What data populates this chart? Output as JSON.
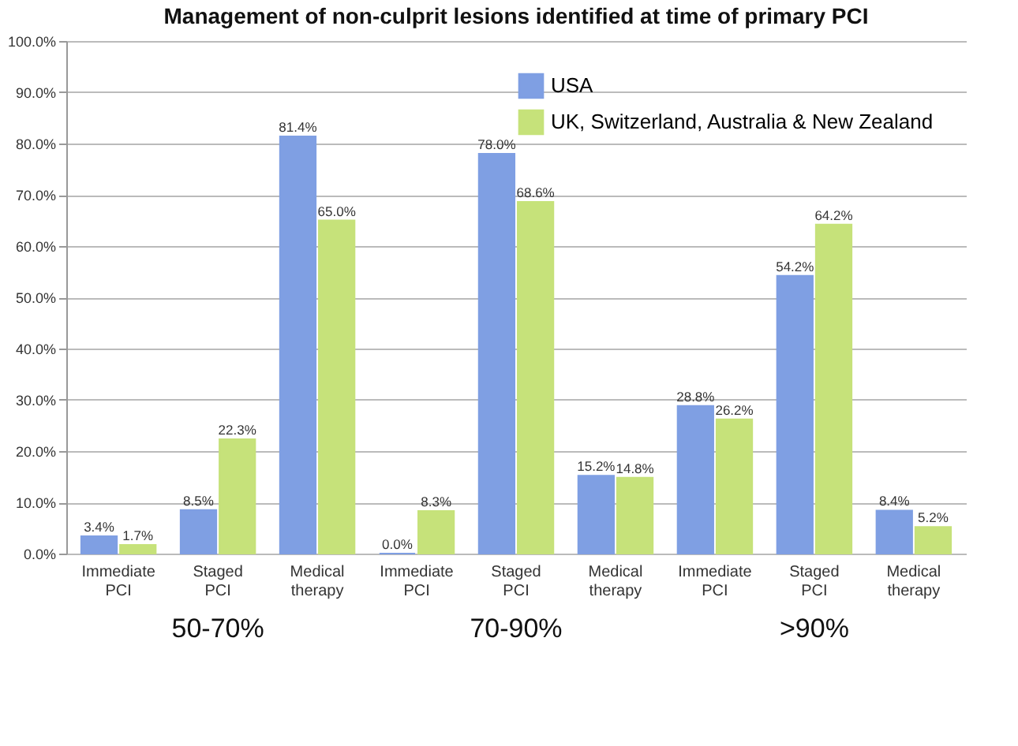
{
  "chart_data": {
    "type": "bar",
    "title": "Management of non-culprit lesions identified at time of primary PCI",
    "categories": [
      "Immediate PCI",
      "Staged PCI",
      "Medical therapy",
      "Immediate PCI",
      "Staged PCI",
      "Medical therapy",
      "Immediate PCI",
      "Staged PCI",
      "Medical therapy"
    ],
    "series": [
      {
        "name": "USA",
        "color": "#7f9fe3",
        "values": [
          3.4,
          8.5,
          81.4,
          0.0,
          78.0,
          15.2,
          28.8,
          54.2,
          8.4
        ],
        "value_labels": [
          "3.4%",
          "8.5%",
          "81.4%",
          "0.0%",
          "78.0%",
          "15.2%",
          "28.8%",
          "54.2%",
          "8.4%"
        ]
      },
      {
        "name": "UK, Switzerland, Australia & New Zealand",
        "color": "#c6e27a",
        "values": [
          1.7,
          22.3,
          65.0,
          8.3,
          68.6,
          14.8,
          26.2,
          64.2,
          5.2
        ],
        "value_labels": [
          "1.7%",
          "22.3%",
          "65.0%",
          "8.3%",
          "68.6%",
          "14.8%",
          "26.2%",
          "64.2%",
          "5.2%"
        ]
      }
    ],
    "annotations": [
      "50-70%",
      "70-90%",
      ">90%"
    ],
    "ylim": [
      0,
      100
    ],
    "yticks": [
      {
        "value": 0,
        "label": "0.0%"
      },
      {
        "value": 10,
        "label": "10.0%"
      },
      {
        "value": 20,
        "label": "20.0%"
      },
      {
        "value": 30,
        "label": "30.0%"
      },
      {
        "value": 40,
        "label": "40.0%"
      },
      {
        "value": 50,
        "label": "50.0%"
      },
      {
        "value": 60,
        "label": "60.0%"
      },
      {
        "value": 70,
        "label": "70.0%"
      },
      {
        "value": 80,
        "label": "80.0%"
      },
      {
        "value": 90,
        "label": "90.0%"
      },
      {
        "value": 100,
        "label": "100.0%"
      }
    ],
    "grid": "y",
    "legend": "top right"
  }
}
